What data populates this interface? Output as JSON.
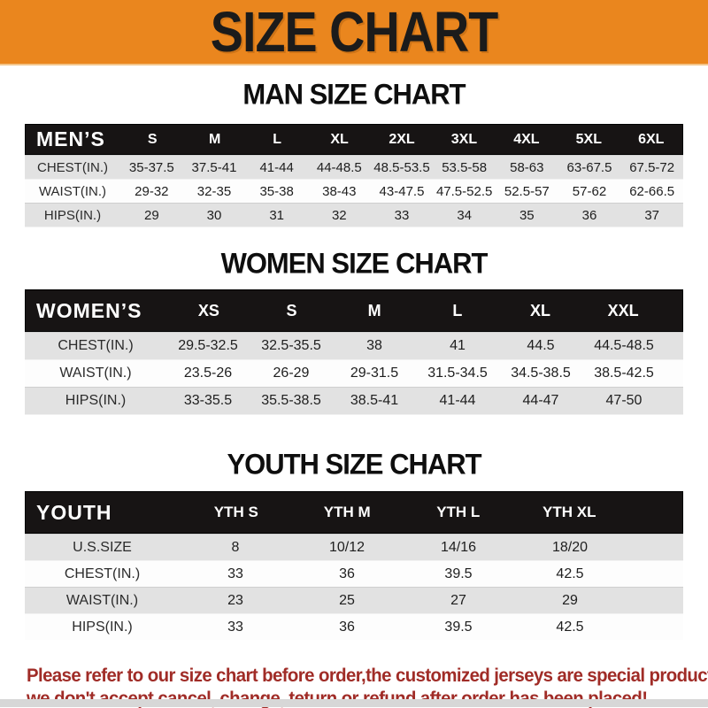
{
  "banner": {
    "title": "SIZE CHART",
    "bg_color": "#EA861E",
    "text_color": "#1b1b1b"
  },
  "colors": {
    "header_bar": "#171414",
    "striped_row": "#e2e2e2",
    "footer_text": "#A02C27"
  },
  "sections": [
    {
      "id": "men",
      "title": "MAN SIZE CHART",
      "header_label": "MEN’S",
      "columns": [
        "S",
        "M",
        "L",
        "XL",
        "2XL",
        "3XL",
        "4XL",
        "5XL",
        "6XL"
      ],
      "rows": [
        {
          "label": "CHEST(IN.)",
          "values": [
            "35-37.5",
            "37.5-41",
            "41-44",
            "44-48.5",
            "48.5-53.5",
            "53.5-58",
            "58-63",
            "63-67.5",
            "67.5-72"
          ]
        },
        {
          "label": "WAIST(IN.)",
          "values": [
            "29-32",
            "32-35",
            "35-38",
            "38-43",
            "43-47.5",
            "47.5-52.5",
            "52.5-57",
            "57-62",
            "62-66.5"
          ]
        },
        {
          "label": "HIPS(IN.)",
          "values": [
            "29",
            "30",
            "31",
            "32",
            "33",
            "34",
            "35",
            "36",
            "37"
          ]
        }
      ]
    },
    {
      "id": "women",
      "title": "WOMEN SIZE CHART",
      "header_label": "WOMEN’S",
      "columns": [
        "XS",
        "S",
        "M",
        "L",
        "XL",
        "XXL"
      ],
      "rows": [
        {
          "label": "CHEST(IN.)",
          "values": [
            "29.5-32.5",
            "32.5-35.5",
            "38",
            "41",
            "44.5",
            "44.5-48.5"
          ]
        },
        {
          "label": "WAIST(IN.)",
          "values": [
            "23.5-26",
            "26-29",
            "29-31.5",
            "31.5-34.5",
            "34.5-38.5",
            "38.5-42.5"
          ]
        },
        {
          "label": "HIPS(IN.)",
          "values": [
            "33-35.5",
            "35.5-38.5",
            "38.5-41",
            "41-44",
            "44-47",
            "47-50"
          ]
        }
      ]
    },
    {
      "id": "youth",
      "title": "YOUTH SIZE CHART",
      "header_label": "YOUTH",
      "columns": [
        "YTH S",
        "YTH M",
        "YTH L",
        "YTH XL"
      ],
      "rows": [
        {
          "label": "U.S.SIZE",
          "values": [
            "8",
            "10/12",
            "14/16",
            "18/20"
          ]
        },
        {
          "label": "CHEST(IN.)",
          "values": [
            "33",
            "36",
            "39.5",
            "42.5"
          ]
        },
        {
          "label": "WAIST(IN.)",
          "values": [
            "23",
            "25",
            "27",
            "29"
          ]
        },
        {
          "label": "HIPS(IN.)",
          "values": [
            "33",
            "36",
            "39.5",
            "42.5"
          ]
        }
      ]
    }
  ],
  "footer": {
    "line1": "Please refer to our size chart before order,the customized jerseys are special products,",
    "line2": "we don't accept cancel, change, teturn or refund after order has been placed!"
  }
}
